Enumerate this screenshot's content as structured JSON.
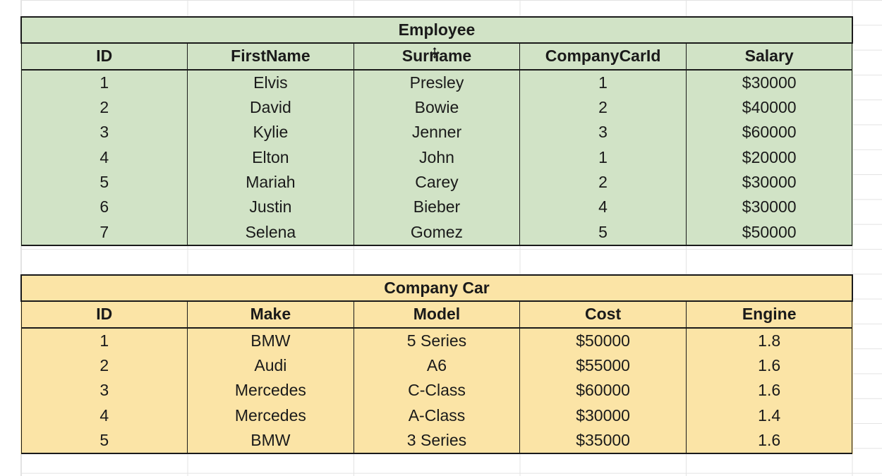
{
  "employee": {
    "title": "Employee",
    "headers": [
      "ID",
      "FirstName",
      "Surname",
      "CompanyCarId",
      "Salary"
    ],
    "rows": [
      [
        "1",
        "Elvis",
        "Presley",
        "1",
        "$30000"
      ],
      [
        "2",
        "David",
        "Bowie",
        "2",
        "$40000"
      ],
      [
        "3",
        "Kylie",
        "Jenner",
        "3",
        "$60000"
      ],
      [
        "4",
        "Elton",
        "John",
        "1",
        "$20000"
      ],
      [
        "5",
        "Mariah",
        "Carey",
        "2",
        "$30000"
      ],
      [
        "6",
        "Justin",
        "Bieber",
        "4",
        "$30000"
      ],
      [
        "7",
        "Selena",
        "Gomez",
        "5",
        "$50000"
      ]
    ],
    "fill_color": "#d1e3c6"
  },
  "company_car": {
    "title": "Company Car",
    "headers": [
      "ID",
      "Make",
      "Model",
      "Cost",
      "Engine"
    ],
    "rows": [
      [
        "1",
        "BMW",
        "5 Series",
        "$50000",
        "1.8"
      ],
      [
        "2",
        "Audi",
        "A6",
        "$55000",
        "1.6"
      ],
      [
        "3",
        "Mercedes",
        "C-Class",
        "$60000",
        "1.6"
      ],
      [
        "4",
        "Mercedes",
        "A-Class",
        "$30000",
        "1.4"
      ],
      [
        "5",
        "BMW",
        "3 Series",
        "$35000",
        "1.6"
      ]
    ],
    "fill_color": "#fbe4a6"
  },
  "cursor_icon": "move-cursor-icon"
}
